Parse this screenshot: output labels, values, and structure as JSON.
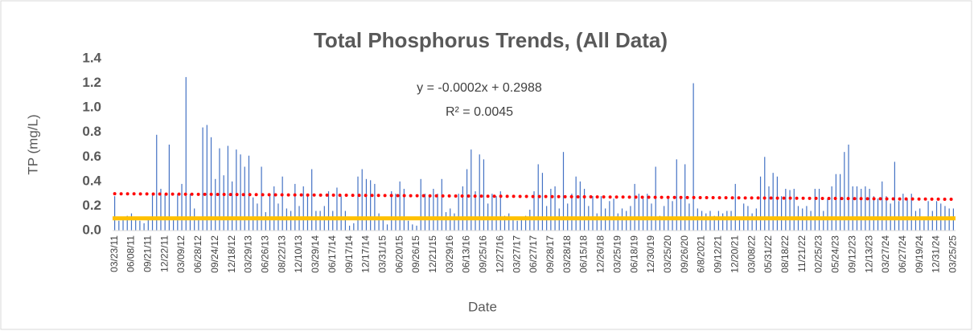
{
  "chart_data": {
    "type": "bar",
    "title": "Total Phosphorus Trends, (All Data)",
    "x_label": "Date",
    "y_label": "TP (mg/L)",
    "color": "#4472c4",
    "ylim": [
      0,
      1.4
    ],
    "yticks": [
      {
        "value": 0,
        "label": "0.0"
      },
      {
        "value": 0.2,
        "label": "0.2"
      },
      {
        "value": 0.4,
        "label": "0.4"
      },
      {
        "value": 0.6,
        "label": "0.6"
      },
      {
        "value": 0.8,
        "label": "0.8"
      },
      {
        "value": 1.0,
        "label": "1.0"
      },
      {
        "value": 1.2,
        "label": "1.2"
      },
      {
        "value": 1.4,
        "label": "1.4"
      }
    ],
    "trendline": {
      "equation": "y = -0.0002x + 0.2988",
      "r_squared": "R² = 0.0045",
      "start": 0.3,
      "end": 0.255,
      "color": "#ff0000"
    },
    "threshold": {
      "value": 0.1,
      "color": "#ffc000"
    },
    "categories": [
      "03/23/11",
      null,
      null,
      null,
      "06/08/11",
      null,
      null,
      null,
      "09/21/11",
      null,
      null,
      null,
      "12/22/11",
      null,
      null,
      null,
      "03/09/12",
      null,
      null,
      null,
      "06/28/12",
      null,
      null,
      null,
      "09/24/12",
      null,
      null,
      null,
      "12/18/12",
      null,
      null,
      null,
      "03/29/13",
      null,
      null,
      null,
      "06/26/13",
      null,
      null,
      null,
      "08/22/13",
      null,
      null,
      null,
      "12/10/13",
      null,
      null,
      null,
      "03/29/14",
      null,
      null,
      null,
      "06/17/14",
      null,
      null,
      null,
      "09/17/14",
      null,
      null,
      null,
      "12/17/14",
      null,
      null,
      null,
      "03/31/15",
      null,
      null,
      null,
      "06/20/15",
      null,
      null,
      null,
      "09/26/15",
      null,
      null,
      null,
      "12/21/15",
      null,
      null,
      null,
      "03/29/16",
      null,
      null,
      null,
      "06/13/16",
      null,
      null,
      null,
      "09/25/16",
      null,
      null,
      null,
      "12/27/16",
      null,
      null,
      null,
      "03/27/17",
      null,
      null,
      null,
      "06/27/17",
      null,
      null,
      null,
      "09/28/17",
      null,
      null,
      null,
      "03/28/18",
      null,
      null,
      null,
      "06/15/18",
      null,
      null,
      null,
      "12/26/18",
      null,
      null,
      null,
      "03/25/19",
      null,
      null,
      null,
      "06/18/19",
      null,
      null,
      null,
      "12/30/19",
      null,
      null,
      null,
      "03/25/20",
      null,
      null,
      null,
      "09/26/20",
      null,
      null,
      null,
      "6/8/2021",
      null,
      null,
      null,
      "09/12/21",
      null,
      null,
      null,
      "12/20/21",
      null,
      null,
      null,
      "03/08/22",
      null,
      null,
      null,
      "05/31/22",
      null,
      null,
      null,
      "08/18/22",
      null,
      null,
      null,
      "11/21/22",
      null,
      null,
      null,
      "02/25/23",
      null,
      null,
      null,
      "05/24/23",
      null,
      null,
      null,
      "09/12/23",
      null,
      null,
      null,
      "12/13/23",
      null,
      null,
      null,
      "03/27/24",
      null,
      null,
      null,
      "06/27/24",
      null,
      null,
      null,
      "09/19/24",
      null,
      null,
      null,
      "12/31/24",
      null,
      null,
      null,
      "03/25/25"
    ],
    "values": [
      0.28,
      0.08,
      0.1,
      0.12,
      0.14,
      0.1,
      0.08,
      0.06,
      0.1,
      0.3,
      0.78,
      0.34,
      0.3,
      0.7,
      0.1,
      0.3,
      0.38,
      1.25,
      0.3,
      0.18,
      0.1,
      0.84,
      0.86,
      0.76,
      0.42,
      0.67,
      0.45,
      0.69,
      0.4,
      0.66,
      0.62,
      0.52,
      0.61,
      0.27,
      0.22,
      0.52,
      0.15,
      0.3,
      0.36,
      0.22,
      0.44,
      0.18,
      0.16,
      0.38,
      0.2,
      0.36,
      0.3,
      0.5,
      0.16,
      0.16,
      0.2,
      0.32,
      0.16,
      0.35,
      0.28,
      0.16,
      0.04,
      0.06,
      0.44,
      0.5,
      0.42,
      0.41,
      0.38,
      0.14,
      0.1,
      0.05,
      0.32,
      0.3,
      0.4,
      0.34,
      0.08,
      0.05,
      0.04,
      0.42,
      0.3,
      0.28,
      0.34,
      0.3,
      0.42,
      0.15,
      0.18,
      0.14,
      0.3,
      0.36,
      0.5,
      0.66,
      0.32,
      0.62,
      0.58,
      0.22,
      0.3,
      0.28,
      0.32,
      0.12,
      0.14,
      0.1,
      0.08,
      0.1,
      0.12,
      0.17,
      0.32,
      0.54,
      0.47,
      0.2,
      0.34,
      0.36,
      0.18,
      0.64,
      0.22,
      0.3,
      0.44,
      0.4,
      0.34,
      0.2,
      0.28,
      0.14,
      0.28,
      0.18,
      0.24,
      0.26,
      0.14,
      0.18,
      0.16,
      0.2,
      0.38,
      0.3,
      0.26,
      0.3,
      0.22,
      0.52,
      0.12,
      0.2,
      0.26,
      0.24,
      0.58,
      0.28,
      0.54,
      0.22,
      1.2,
      0.18,
      0.16,
      0.14,
      0.16,
      0.12,
      0.16,
      0.14,
      0.16,
      0.16,
      0.38,
      0.1,
      0.22,
      0.2,
      0.14,
      0.18,
      0.44,
      0.6,
      0.36,
      0.47,
      0.44,
      0.28,
      0.34,
      0.33,
      0.34,
      0.2,
      0.18,
      0.2,
      0.16,
      0.34,
      0.34,
      0.16,
      0.26,
      0.36,
      0.46,
      0.46,
      0.64,
      0.7,
      0.36,
      0.36,
      0.34,
      0.36,
      0.34,
      0.28,
      0.26,
      0.4,
      0.28,
      0.22,
      0.56,
      0.24,
      0.3,
      0.26,
      0.3,
      0.16,
      0.18,
      0.1,
      0.24,
      0.16,
      0.24,
      0.22,
      0.2,
      0.18,
      0.18
    ]
  }
}
